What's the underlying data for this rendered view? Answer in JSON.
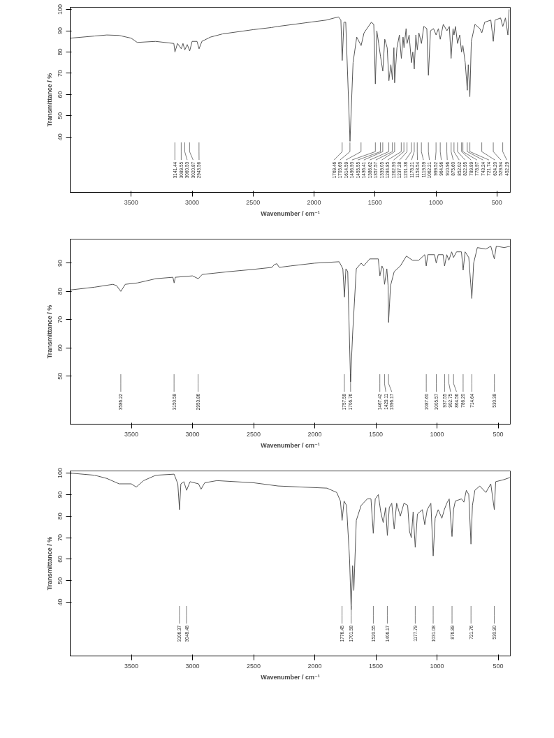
{
  "chart_data": [
    {
      "type": "line",
      "xlabel": "Wavenumber / cm⁻¹",
      "ylabel": "Transmittance / %",
      "color": "#555555",
      "xlim": [
        4000,
        390
      ],
      "ylim": [
        14,
        101
      ],
      "xticks": [
        3500,
        3000,
        2500,
        2000,
        1500,
        1000,
        500
      ],
      "yticks": [
        40,
        50,
        60,
        70,
        80,
        90,
        100
      ],
      "x": [
        4000,
        3800,
        3700,
        3600,
        3500,
        3450,
        3300,
        3150,
        3141,
        3120,
        3089,
        3075,
        3060,
        3040,
        3020,
        3000,
        2960,
        2943,
        2920,
        2850,
        2750,
        2500,
        2350,
        2300,
        2100,
        1900,
        1800,
        1780,
        1769,
        1755,
        1740,
        1705,
        1680,
        1650,
        1614,
        1590,
        1530,
        1510,
        1497,
        1485,
        1470,
        1455,
        1436,
        1420,
        1400,
        1386,
        1370,
        1357,
        1345,
        1339,
        1320,
        1300,
        1284,
        1270,
        1262,
        1245,
        1237,
        1220,
        1201,
        1190,
        1178,
        1165,
        1153,
        1140,
        1119,
        1100,
        1075,
        1062,
        1045,
        1020,
        999,
        980,
        965,
        940,
        910,
        890,
        876,
        860,
        852,
        840,
        823,
        805,
        790,
        779,
        760,
        743,
        735,
        722,
        710,
        680,
        640,
        624,
        600,
        550,
        530,
        515,
        470,
        452,
        430,
        410,
        400
      ],
      "values": [
        86.5,
        87.5,
        88,
        87.8,
        86.5,
        84.5,
        85,
        84,
        80,
        84,
        81.5,
        84,
        81,
        83.5,
        80.5,
        85,
        85,
        81.5,
        85,
        87,
        88.5,
        90.5,
        91.5,
        92,
        93.5,
        95,
        96.5,
        95,
        76,
        94,
        94,
        38,
        75,
        87,
        83,
        89,
        94,
        93,
        65,
        90,
        84,
        78,
        71,
        86,
        82,
        66.5,
        74,
        67,
        82,
        65.5,
        82,
        88,
        77,
        87,
        82,
        91,
        84,
        88,
        75,
        80,
        72,
        88,
        81,
        89,
        84,
        92,
        91,
        69,
        90,
        91,
        88,
        91,
        86,
        93,
        90,
        92,
        77,
        91,
        88,
        92,
        84,
        88,
        80,
        83,
        75,
        62,
        74,
        59,
        85,
        93,
        91,
        89,
        94,
        95,
        85,
        95,
        96,
        92,
        96,
        88,
        100
      ],
      "annotations": [
        {
          "text": "3141.44",
          "x": 3141.44
        },
        {
          "text": "3089.55",
          "x": 3089.55
        },
        {
          "text": "3060.53",
          "x": 3060.53
        },
        {
          "text": "3020.87",
          "x": 3020.87
        },
        {
          "text": "2943.56",
          "x": 2943.56
        },
        {
          "text": "1769.46",
          "x": 1769.46
        },
        {
          "text": "1705.69",
          "x": 1705.69
        },
        {
          "text": "1614.59",
          "x": 1614.59
        },
        {
          "text": "1496.93",
          "x": 1496.93
        },
        {
          "text": "1455.55",
          "x": 1455.55
        },
        {
          "text": "1436.41",
          "x": 1436.41
        },
        {
          "text": "1386.62",
          "x": 1386.62
        },
        {
          "text": "1357.57",
          "x": 1357.57
        },
        {
          "text": "1339.05",
          "x": 1339.05
        },
        {
          "text": "1284.85",
          "x": 1284.85
        },
        {
          "text": "1262.93",
          "x": 1262.93
        },
        {
          "text": "1237.28",
          "x": 1237.28
        },
        {
          "text": "1201.38",
          "x": 1201.38
        },
        {
          "text": "1178.21",
          "x": 1178.21
        },
        {
          "text": "1153.54",
          "x": 1153.54
        },
        {
          "text": "1119.59",
          "x": 1119.59
        },
        {
          "text": "1062.21",
          "x": 1062.21
        },
        {
          "text": "999.52",
          "x": 999.52
        },
        {
          "text": "964.96",
          "x": 964.96
        },
        {
          "text": "910.96",
          "x": 910.96
        },
        {
          "text": "875.60",
          "x": 875.6
        },
        {
          "text": "852.02",
          "x": 852.02
        },
        {
          "text": "822.95",
          "x": 822.95
        },
        {
          "text": "789.89",
          "x": 789.89
        },
        {
          "text": "778.97",
          "x": 778.97
        },
        {
          "text": "743.24",
          "x": 743.24
        },
        {
          "text": "721.74",
          "x": 721.74
        },
        {
          "text": "624.20",
          "x": 624.2
        },
        {
          "text": "529.94",
          "x": 529.94
        },
        {
          "text": "452.29",
          "x": 452.29
        }
      ]
    },
    {
      "type": "line",
      "xlabel": "Wavenumber / cm⁻¹",
      "ylabel": "Transmittance / %",
      "color": "#555555",
      "xlim": [
        4000,
        400
      ],
      "ylim": [
        33,
        98.5
      ],
      "xticks": [
        3500,
        3000,
        2500,
        2000,
        1500,
        1000,
        500
      ],
      "yticks": [
        50,
        60,
        70,
        80,
        90
      ],
      "x": [
        4000,
        3800,
        3650,
        3620,
        3586,
        3550,
        3450,
        3300,
        3160,
        3150,
        3140,
        3000,
        2953,
        2920,
        2700,
        2500,
        2350,
        2330,
        2310,
        2290,
        2200,
        2000,
        1800,
        1770,
        1757,
        1745,
        1730,
        1707,
        1690,
        1660,
        1620,
        1600,
        1550,
        1480,
        1467,
        1450,
        1440,
        1429,
        1410,
        1400,
        1396,
        1380,
        1350,
        1300,
        1250,
        1200,
        1150,
        1100,
        1088,
        1075,
        1020,
        1006,
        990,
        950,
        938,
        920,
        903,
        880,
        865,
        840,
        800,
        786,
        770,
        740,
        715,
        700,
        670,
        600,
        560,
        531,
        515,
        450,
        400
      ],
      "values": [
        80.5,
        81.5,
        82.5,
        82,
        80,
        82.5,
        83,
        84.5,
        85,
        83,
        85,
        85.5,
        84.5,
        86,
        87,
        87.8,
        88.5,
        89.5,
        89.8,
        88.5,
        89,
        90,
        90.5,
        88,
        78,
        88,
        87,
        48,
        65,
        88,
        90,
        89,
        91.5,
        91.5,
        85.5,
        89,
        88,
        82.5,
        88,
        82,
        69,
        82,
        87,
        89,
        92.5,
        91,
        91,
        93,
        89,
        93,
        93,
        90,
        93,
        93,
        89,
        93,
        91,
        94,
        92,
        94,
        94,
        87.5,
        94,
        92,
        77.5,
        90,
        95.5,
        95,
        96,
        91.5,
        96,
        95.5,
        96
      ],
      "annotations": [
        {
          "text": "3586.22",
          "x": 3586.22
        },
        {
          "text": "3150.58",
          "x": 3150.58
        },
        {
          "text": "2953.86",
          "x": 2953.86
        },
        {
          "text": "1757.58",
          "x": 1757.58
        },
        {
          "text": "1706.76",
          "x": 1706.76
        },
        {
          "text": "1467.42",
          "x": 1467.42
        },
        {
          "text": "1429.11",
          "x": 1429.11
        },
        {
          "text": "1396.17",
          "x": 1396.17
        },
        {
          "text": "1087.60",
          "x": 1087.6
        },
        {
          "text": "1005.57",
          "x": 1005.57
        },
        {
          "text": "937.55",
          "x": 937.55
        },
        {
          "text": "902.75",
          "x": 902.75
        },
        {
          "text": "864.56",
          "x": 864.56
        },
        {
          "text": "786.20",
          "x": 786.2
        },
        {
          "text": "714.64",
          "x": 714.64
        },
        {
          "text": "530.38",
          "x": 530.38
        }
      ]
    },
    {
      "type": "line",
      "xlabel": "Wavenumber / cm⁻¹",
      "ylabel": "Transmittance / %",
      "color": "#555555",
      "xlim": [
        4000,
        400
      ],
      "ylim": [
        15,
        101
      ],
      "xticks": [
        3500,
        3000,
        2500,
        2000,
        1500,
        1000,
        500
      ],
      "yticks": [
        40,
        50,
        60,
        70,
        80,
        90,
        100
      ],
      "x": [
        4000,
        3800,
        3700,
        3600,
        3500,
        3460,
        3400,
        3300,
        3150,
        3120,
        3106,
        3095,
        3070,
        3048,
        3020,
        2950,
        2930,
        2900,
        2800,
        2500,
        2300,
        2100,
        1900,
        1820,
        1790,
        1776,
        1760,
        1740,
        1715,
        1702,
        1690,
        1680,
        1660,
        1620,
        1570,
        1540,
        1521,
        1505,
        1480,
        1460,
        1440,
        1420,
        1406,
        1390,
        1370,
        1350,
        1330,
        1300,
        1270,
        1240,
        1225,
        1210,
        1195,
        1178,
        1160,
        1120,
        1100,
        1080,
        1050,
        1031,
        1015,
        990,
        960,
        940,
        920,
        900,
        877,
        865,
        850,
        800,
        780,
        760,
        740,
        722,
        710,
        690,
        650,
        600,
        560,
        531,
        520,
        450,
        400
      ],
      "values": [
        100,
        99,
        97.5,
        95,
        95,
        93.5,
        96.5,
        99,
        99.5,
        95,
        83,
        95,
        96,
        92,
        96,
        95,
        92.5,
        95.5,
        96.5,
        95.5,
        94,
        93.5,
        93,
        91,
        87,
        78,
        87,
        85,
        60,
        36.5,
        57,
        45.5,
        78,
        85,
        88,
        88,
        72,
        88,
        90,
        82,
        77,
        84,
        71,
        84,
        86,
        74,
        86,
        80,
        86,
        85,
        73,
        70,
        82,
        65.5,
        81,
        83,
        76,
        83,
        86,
        61.5,
        79,
        83,
        79,
        83,
        86,
        88,
        70.5,
        83,
        87,
        88,
        86.5,
        92,
        90,
        67,
        85,
        92,
        94,
        91,
        95,
        83,
        96,
        97,
        98
      ],
      "annotations": [
        {
          "text": "3106.37",
          "x": 3106.37
        },
        {
          "text": "3048.48",
          "x": 3048.48
        },
        {
          "text": "1776.45",
          "x": 1776.45
        },
        {
          "text": "1701.58",
          "x": 1701.58
        },
        {
          "text": "1520.55",
          "x": 1520.55
        },
        {
          "text": "1406.17",
          "x": 1406.17
        },
        {
          "text": "1177.79",
          "x": 1177.79
        },
        {
          "text": "1031.08",
          "x": 1031.08
        },
        {
          "text": "876.89",
          "x": 876.89
        },
        {
          "text": "721.76",
          "x": 721.76
        },
        {
          "text": "530.90",
          "x": 530.9
        }
      ]
    }
  ]
}
